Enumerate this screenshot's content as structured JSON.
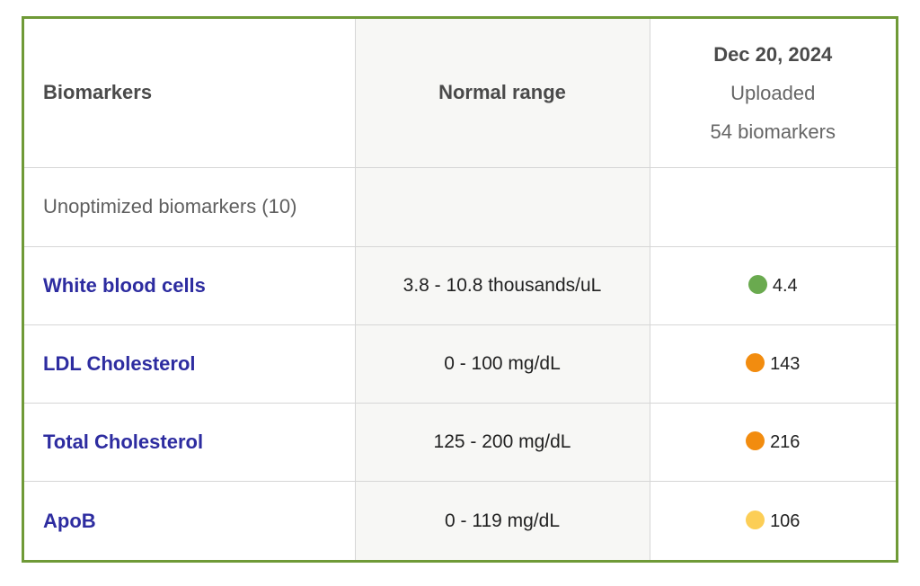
{
  "header": {
    "col1": "Biomarkers",
    "col2": "Normal range",
    "date": "Dec 20, 2024",
    "status": "Uploaded",
    "count": "54 biomarkers"
  },
  "section": {
    "label": "Unoptimized biomarkers (10)"
  },
  "rows": [
    {
      "name": "White blood cells",
      "range": "3.8 - 10.8 thousands/uL",
      "value": "4.4",
      "status_color": "#6aaa4f"
    },
    {
      "name": "LDL Cholesterol",
      "range": "0 - 100 mg/dL",
      "value": "143",
      "status_color": "#f28c0f"
    },
    {
      "name": "Total Cholesterol",
      "range": "125 - 200 mg/dL",
      "value": "216",
      "status_color": "#f28c0f"
    },
    {
      "name": "ApoB",
      "range": "0 - 119 mg/dL",
      "value": "106",
      "status_color": "#fcce56"
    }
  ],
  "colors": {
    "border": "#6f9a37",
    "link": "#2d2ca0",
    "mid_column_bg": "#f7f7f5"
  }
}
